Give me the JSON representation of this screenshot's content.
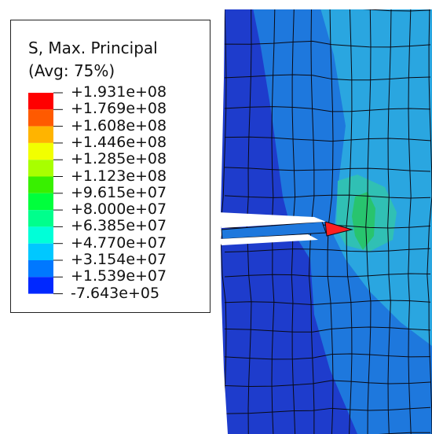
{
  "legend": {
    "title": "S, Max. Principal",
    "subtitle": "(Avg: 75%)",
    "labels": [
      "+1.931e+08",
      "+1.769e+08",
      "+1.608e+08",
      "+1.446e+08",
      "+1.285e+08",
      "+1.123e+08",
      "+9.615e+07",
      "+8.000e+07",
      "+6.385e+07",
      "+4.770e+07",
      "+3.154e+07",
      "+1.539e+07",
      "-7.643e+05"
    ],
    "colors": [
      "#ff0000",
      "#ff5a00",
      "#ffb400",
      "#f2ff00",
      "#a8ff00",
      "#38f000",
      "#00ff3c",
      "#00ff8c",
      "#00ffd8",
      "#00c8ff",
      "#0078ff",
      "#0028ff"
    ]
  },
  "colors": {
    "mesh_dark": "#1e3ccc",
    "mesh_mid": "#1e78dd",
    "mesh_light": "#2aa6e0",
    "mesh_cyan": "#30c0b4",
    "mesh_green": "#28c46e",
    "crack_tip": "#ff2020",
    "mesh_lines": "#0a0a14"
  }
}
